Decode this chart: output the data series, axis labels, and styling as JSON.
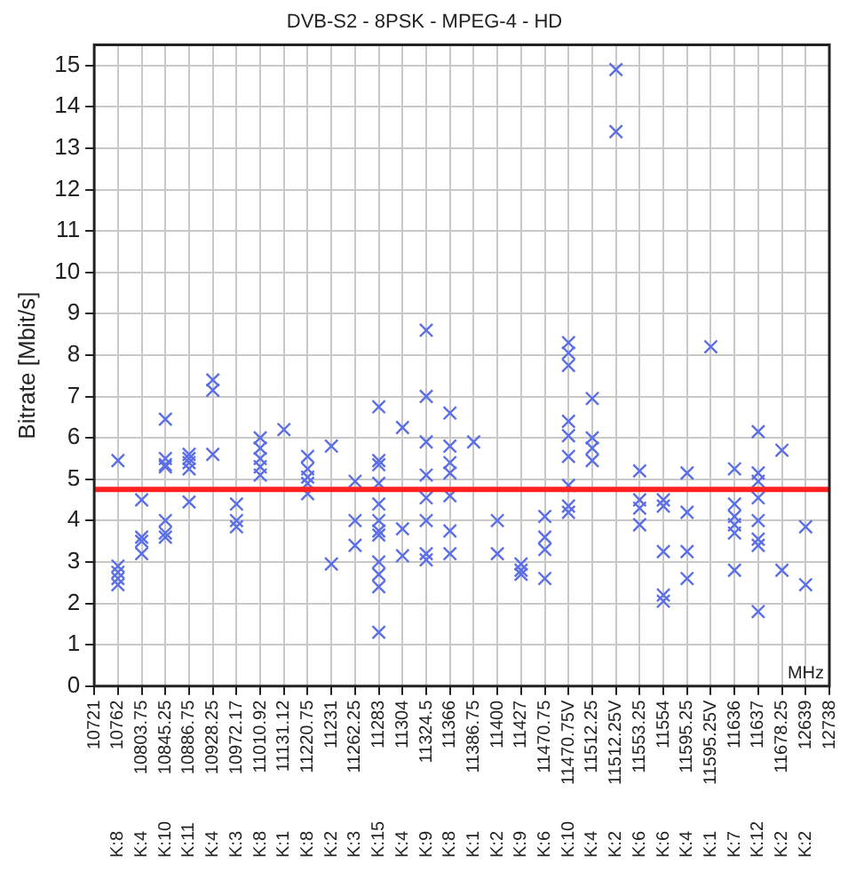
{
  "chart_data": {
    "type": "scatter",
    "title": "DVB-S2 - 8PSK - MPEG-4 - HD",
    "ylabel": "Bitrate [Mbit/s]",
    "categories": [
      "10721",
      "10762",
      "10803.75",
      "10845.25",
      "10886.75",
      "10928.25",
      "10972.17",
      "11010.92",
      "11131.12",
      "11220.75",
      "11231",
      "11262.25",
      "11283",
      "11304",
      "11324.5",
      "11366",
      "11386.75",
      "11400",
      "11427",
      "11470.75",
      "11470.75V",
      "11512.25",
      "11512.25V",
      "11553.25",
      "11554",
      "11595.25",
      "11595.25V",
      "11636",
      "11637",
      "11678.25",
      "12639",
      "12738"
    ],
    "series": [
      {
        "color": "#5a6ee8",
        "x": [
          "10762",
          "10762",
          "10762",
          "10762",
          "10762",
          "10803.75",
          "10803.75",
          "10803.75",
          "10803.75",
          "10845.25",
          "10845.25",
          "10845.25",
          "10845.25",
          "10845.25",
          "10845.25",
          "10845.25",
          "10886.75",
          "10886.75",
          "10886.75",
          "10886.75",
          "10886.75",
          "10928.25",
          "10928.25",
          "10928.25",
          "10972.17",
          "10972.17",
          "10972.17",
          "11010.92",
          "11010.92",
          "11010.92",
          "11010.92",
          "11010.92",
          "11131.12",
          "11220.75",
          "11220.75",
          "11220.75",
          "11220.75",
          "11220.75",
          "11231",
          "11231",
          "11262.25",
          "11262.25",
          "11262.25",
          "11283",
          "11283",
          "11283",
          "11283",
          "11283",
          "11283",
          "11283",
          "11283",
          "11283",
          "11283",
          "11283",
          "11283",
          "11304",
          "11304",
          "11304",
          "11324.5",
          "11324.5",
          "11324.5",
          "11324.5",
          "11324.5",
          "11324.5",
          "11324.5",
          "11324.5",
          "11366",
          "11366",
          "11366",
          "11366",
          "11366",
          "11366",
          "11366",
          "11386.75",
          "11400",
          "11400",
          "11427",
          "11427",
          "11427",
          "11470.75",
          "11470.75",
          "11470.75",
          "11470.75",
          "11470.75V",
          "11470.75V",
          "11470.75V",
          "11470.75V",
          "11470.75V",
          "11470.75V",
          "11470.75V",
          "11470.75V",
          "11470.75V",
          "11512.25",
          "11512.25",
          "11512.25",
          "11512.25",
          "11512.25V",
          "11512.25V",
          "11553.25",
          "11553.25",
          "11553.25",
          "11553.25",
          "11554",
          "11554",
          "11554",
          "11554",
          "11554",
          "11595.25",
          "11595.25",
          "11595.25",
          "11595.25",
          "11595.25V",
          "11636",
          "11636",
          "11636",
          "11636",
          "11636",
          "11636",
          "11637",
          "11637",
          "11637",
          "11637",
          "11637",
          "11637",
          "11637",
          "11637",
          "11678.25",
          "11678.25",
          "12639",
          "12639"
        ],
        "values": [
          5.45,
          2.9,
          2.75,
          2.6,
          2.45,
          4.5,
          3.6,
          3.5,
          3.2,
          6.45,
          5.5,
          5.35,
          5.3,
          4.0,
          3.7,
          3.6,
          5.6,
          5.5,
          5.4,
          5.25,
          4.45,
          7.4,
          7.15,
          5.6,
          4.4,
          4.0,
          3.85,
          6.0,
          5.75,
          5.5,
          5.3,
          5.1,
          6.2,
          5.55,
          5.25,
          5.05,
          4.9,
          4.65,
          5.8,
          2.95,
          4.95,
          4.0,
          3.4,
          6.75,
          5.45,
          5.35,
          4.9,
          4.4,
          4.0,
          3.75,
          3.65,
          3.0,
          2.7,
          2.4,
          1.3,
          6.25,
          3.8,
          3.15,
          8.6,
          7.0,
          5.9,
          5.1,
          4.55,
          4.0,
          3.2,
          3.05,
          6.6,
          5.8,
          5.4,
          5.15,
          4.6,
          3.75,
          3.2,
          5.9,
          4.0,
          3.2,
          2.95,
          2.8,
          2.7,
          4.1,
          3.6,
          3.3,
          2.6,
          8.3,
          8.05,
          7.75,
          6.4,
          6.05,
          5.55,
          4.85,
          4.35,
          4.2,
          6.95,
          6.0,
          5.75,
          5.45,
          14.9,
          13.4,
          5.2,
          4.5,
          4.3,
          3.9,
          4.5,
          4.35,
          3.25,
          2.2,
          2.05,
          5.15,
          4.2,
          3.25,
          2.6,
          8.2,
          5.25,
          4.4,
          4.1,
          3.9,
          3.7,
          2.8,
          6.15,
          5.15,
          4.95,
          4.55,
          4.0,
          3.55,
          3.4,
          1.8,
          5.7,
          2.8,
          3.85,
          2.45
        ]
      }
    ],
    "ylim": [
      0,
      15.5
    ],
    "yticks": [
      0,
      1,
      2,
      3,
      4,
      5,
      6,
      7,
      8,
      9,
      10,
      11,
      12,
      13,
      14,
      15
    ],
    "marker": "cross",
    "grid": true,
    "legend": false,
    "ref_lines": [
      {
        "axis": "y",
        "value": 4.75,
        "color": "#ff2020"
      }
    ],
    "annotations": [
      "MHz",
      "K:8",
      "K:4",
      "K:10",
      "K:11",
      "K:4",
      "K:3",
      "K:8",
      "K:1",
      "K:8",
      "K:2",
      "K:3",
      "K:15",
      "K:4",
      "K:9",
      "K:8",
      "K:1",
      "K:2",
      "K:9",
      "K:6",
      "K:10",
      "K:4",
      "K:2",
      "K:6",
      "K:6",
      "K:4",
      "K:1",
      "K:7",
      "K:12",
      "K:2",
      "K:2"
    ]
  }
}
